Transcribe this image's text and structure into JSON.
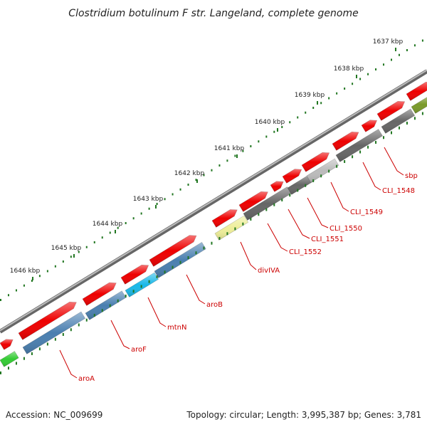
{
  "title": "Clostridium botulinum F str. Langeland, complete genome",
  "footer": {
    "accession": "Accession: NC_009699",
    "summary": "Topology: circular; Length: 3,995,387 bp; Genes: 3,781"
  },
  "ticks": [
    "1637 kbp",
    "1638 kbp",
    "1639 kbp",
    "1640 kbp",
    "1641 kbp",
    "1642 kbp",
    "1643 kbp",
    "1644 kbp",
    "1645 kbp",
    "1646 kbp"
  ],
  "gene_labels": [
    "sbp",
    "CLI_1548",
    "CLI_1549",
    "CLI_1550",
    "CLI_1551",
    "CLI_1552",
    "divIVA",
    "aroB",
    "mtnN",
    "aroF",
    "aroA"
  ],
  "colors": {
    "cds_arrow": "#ee0000",
    "backbone": "#888888",
    "tick_mark": "#227722",
    "label": "#cc0000",
    "gene_blue": "#4a7fb0",
    "gene_cyan": "#1ab8e8",
    "gene_yellow": "#eeee99",
    "gene_gray": "#666666",
    "gene_lightgray": "#bbbbbb",
    "gene_olive": "#7a9a2a",
    "gene_green": "#33cc33"
  }
}
